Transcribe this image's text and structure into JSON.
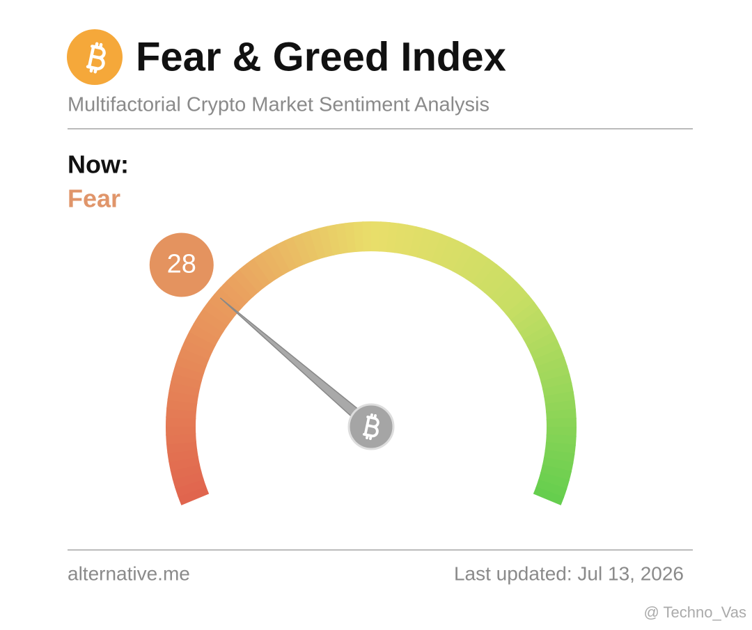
{
  "header": {
    "title": "Fear & Greed Index",
    "subtitle": "Multifactorial Crypto Market Sentiment Analysis"
  },
  "now": {
    "label": "Now:",
    "classification": "Fear"
  },
  "chart_data": {
    "type": "gauge",
    "value": 28,
    "ylim": [
      0,
      100
    ]
  },
  "footer": {
    "source": "alternative.me",
    "updated": "Last updated: Jul 13, 2026"
  },
  "watermark": "@ Techno_Vas"
}
